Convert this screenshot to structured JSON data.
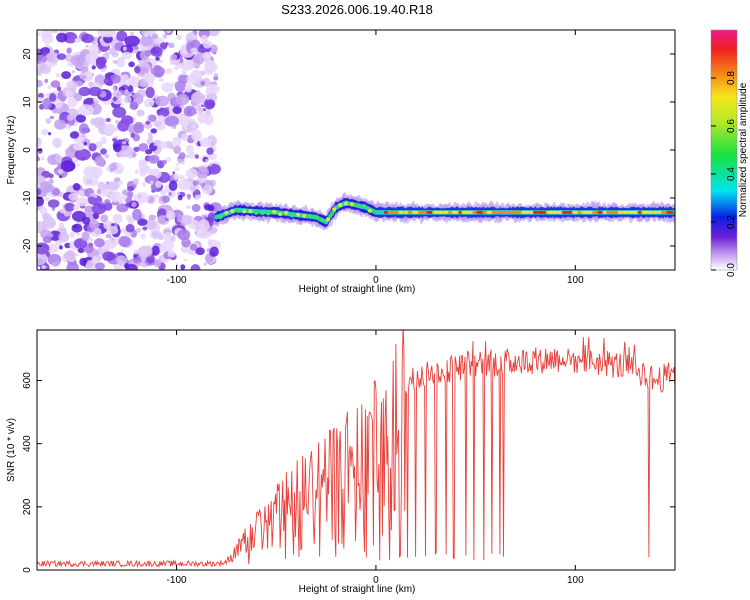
{
  "title": "S233.2026.006.19.40.R18",
  "chart_data": [
    {
      "type": "heatmap",
      "name": "spectrogram",
      "xlabel": "Height of straight line (km)",
      "ylabel": "Frequency (Hz)",
      "xlim": [
        -170,
        150
      ],
      "ylim": [
        -25,
        25
      ],
      "xticks": [
        -100,
        0,
        100
      ],
      "xtick_labels": [
        "-100",
        "0",
        "100"
      ],
      "yticks": [
        -20,
        -10,
        0,
        10,
        20
      ],
      "ytick_labels": [
        "-20",
        "-10",
        "0",
        "10",
        "20"
      ],
      "noise_region_x": [
        -170,
        -80
      ],
      "signal_band": {
        "x": [
          -80,
          -70,
          -60,
          -50,
          -40,
          -30,
          -25,
          -20,
          -15,
          -10,
          -5,
          0,
          10,
          50,
          90,
          100,
          150
        ],
        "freq": [
          -14,
          -12.5,
          -12.8,
          -13,
          -13.5,
          -14,
          -15,
          -12,
          -11,
          -11.5,
          -12,
          -13,
          -13,
          -13,
          -13,
          -13,
          -13
        ]
      },
      "colorbar": {
        "label": "Normalized spectral amplitude",
        "range": [
          0,
          1
        ],
        "ticks": [
          0.0,
          0.2,
          0.4,
          0.6,
          0.8
        ],
        "tick_labels": [
          "0.0",
          "0.2",
          "0.4",
          "0.6",
          "0.8"
        ]
      }
    },
    {
      "type": "line",
      "name": "snr",
      "xlabel": "Height of straight line (km)",
      "ylabel": "SNR (10 * v/v)",
      "xlim": [
        -170,
        150
      ],
      "ylim": [
        0,
        760
      ],
      "xticks": [
        -100,
        0,
        100
      ],
      "xtick_labels": [
        "-100",
        "0",
        "100"
      ],
      "yticks": [
        0,
        200,
        400,
        600
      ],
      "ytick_labels": [
        "0",
        "200",
        "400",
        "600"
      ],
      "series": [
        {
          "name": "SNR",
          "color": "#e8403a",
          "envelope_x": [
            -170,
            -80,
            -75,
            -70,
            -60,
            -50,
            -40,
            -30,
            -20,
            -10,
            0,
            5,
            10,
            15,
            20,
            30,
            50,
            70,
            90,
            110,
            130,
            140,
            150
          ],
          "envelope_y": [
            20,
            20,
            25,
            60,
            130,
            190,
            240,
            290,
            330,
            380,
            420,
            460,
            520,
            580,
            610,
            630,
            650,
            660,
            670,
            660,
            640,
            600,
            620
          ],
          "dropouts_x": [
            -5,
            2,
            7,
            12,
            16,
            20,
            25,
            30,
            35,
            39,
            45,
            49,
            54,
            58,
            62,
            64,
            137
          ]
        }
      ]
    }
  ]
}
